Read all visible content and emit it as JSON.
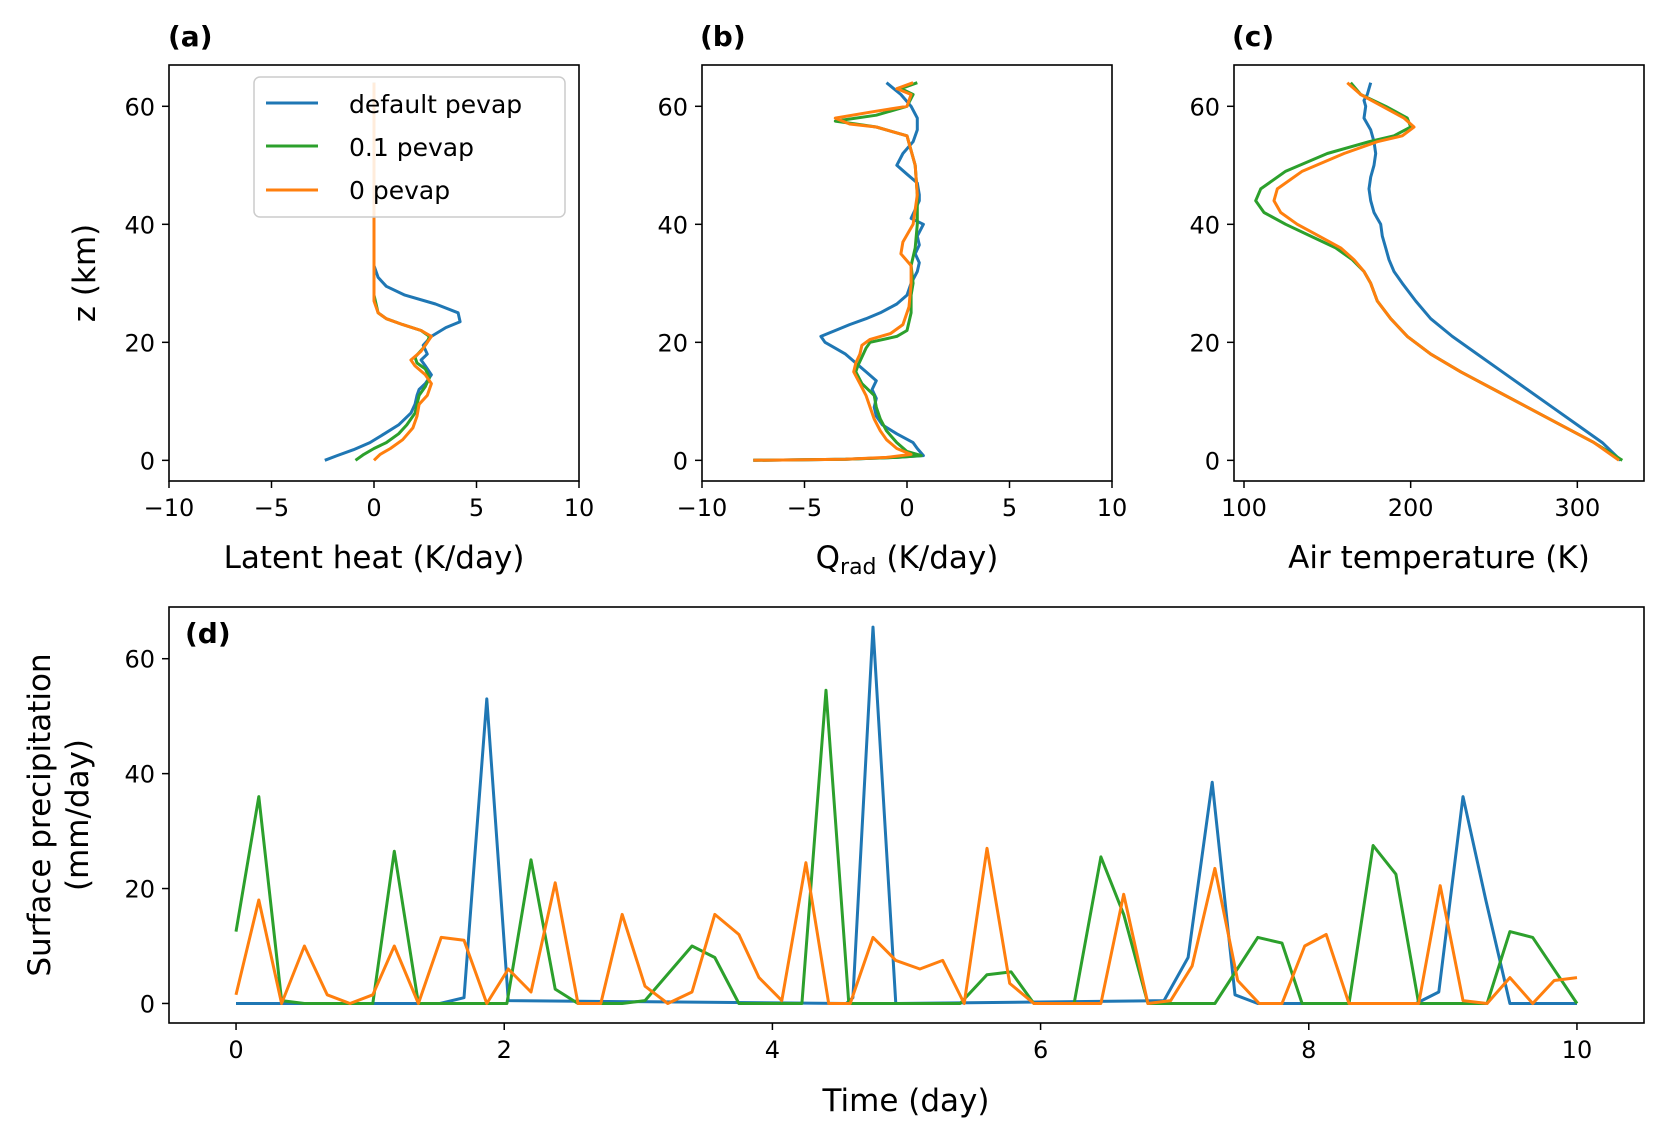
{
  "colors": {
    "default": "#1f77b4",
    "p01": "#2ca02c",
    "p0": "#ff7f0e"
  },
  "legend": [
    "default pevap",
    "0.1 pevap",
    "0 pevap"
  ],
  "chart_data": [
    {
      "id": "a",
      "panel_label": "(a)",
      "type": "line",
      "xlabel": "Latent heat (K/day)",
      "ylabel": "z (km)",
      "xlim": [
        -10,
        10
      ],
      "ylim": [
        -3.5,
        67
      ],
      "xticks": [
        -10,
        -5,
        0,
        5,
        10
      ],
      "xtick_labels": [
        "−10",
        "−5",
        "0",
        "5",
        "10"
      ],
      "yticks": [
        0,
        20,
        40,
        60
      ],
      "ytick_labels": [
        "0",
        "20",
        "40",
        "60"
      ],
      "legend": "upper right",
      "series": [
        {
          "name": "default pevap",
          "color_key": "default",
          "x": [
            -2.4,
            -1.8,
            -1,
            -0.2,
            0.5,
            1.2,
            1.8,
            2,
            2.1,
            2.2,
            2.5,
            2.8,
            2.5,
            2.3,
            2.6,
            2.4,
            2.8,
            3.5,
            4.2,
            4.1,
            3,
            1.5,
            0.6,
            0.2,
            0,
            0,
            0,
            0,
            0
          ],
          "y": [
            0,
            0.8,
            1.8,
            3,
            4.5,
            6,
            8,
            9.5,
            11,
            12,
            13,
            14.5,
            16,
            17,
            18,
            19.5,
            21,
            22.5,
            23.5,
            25,
            26.5,
            28,
            29.5,
            31,
            33,
            40,
            50,
            60,
            64
          ]
        },
        {
          "name": "0.1 pevap",
          "color_key": "p01",
          "x": [
            -0.9,
            -0.5,
            0,
            0.6,
            1.2,
            1.6,
            2,
            2.1,
            2.2,
            2.5,
            2.7,
            2.5,
            2.1,
            2,
            2.4,
            2.6,
            2.7,
            2.3,
            1.4,
            0.6,
            0.2,
            0,
            0,
            0
          ],
          "y": [
            0,
            1,
            2,
            3,
            4.5,
            6,
            8,
            9.5,
            11,
            12.5,
            14,
            15.5,
            16.5,
            17.5,
            19,
            20,
            21,
            22,
            23,
            24,
            25,
            28,
            40,
            64
          ]
        },
        {
          "name": "0 pevap",
          "color_key": "p0",
          "x": [
            0,
            0.3,
            0.8,
            1.4,
            1.9,
            2.1,
            2.2,
            2.6,
            2.8,
            2.5,
            2,
            1.8,
            2.3,
            2.6,
            2.8,
            2.3,
            1.4,
            0.6,
            0.2,
            0,
            0,
            0
          ],
          "y": [
            0,
            1,
            2,
            3.5,
            5.5,
            7.5,
            9.5,
            11,
            13,
            14.5,
            16,
            17,
            18.5,
            20,
            21,
            22,
            23,
            24,
            25,
            27,
            40,
            64
          ]
        }
      ]
    },
    {
      "id": "b",
      "panel_label": "(b)",
      "type": "line",
      "xlabel": "Q_rad (K/day)",
      "xlabel_main": "Q",
      "xlabel_sub": "rad",
      "xlabel_unit": " (K/day)",
      "xlim": [
        -10,
        10
      ],
      "ylim": [
        -3.5,
        67
      ],
      "xticks": [
        -10,
        -5,
        0,
        5,
        10
      ],
      "xtick_labels": [
        "−10",
        "−5",
        "0",
        "5",
        "10"
      ],
      "yticks": [
        0,
        20,
        40,
        60
      ],
      "ytick_labels": [
        "0",
        "20",
        "40",
        "60"
      ],
      "series": [
        {
          "name": "default pevap",
          "color_key": "default",
          "x": [
            -7.5,
            -3,
            -0.5,
            0.8,
            0.5,
            0.3,
            -0.5,
            -1.2,
            -1.5,
            -1.6,
            -1.5,
            -1.7,
            -1.5,
            -2,
            -2.5,
            -3,
            -3.5,
            -4,
            -4.2,
            -3.5,
            -2.8,
            -2,
            -1.3,
            -0.5,
            0,
            0.2,
            0.5,
            0.6,
            0.4,
            0.6,
            0.5,
            0.8,
            0.2,
            0.4,
            0.6,
            0.6,
            0.5,
            0,
            -0.5,
            -0.2,
            0.3,
            0.5,
            0.5,
            0.2,
            -0.3,
            -1
          ],
          "y": [
            0,
            0.2,
            0.5,
            0.8,
            2,
            3,
            4.5,
            6,
            7.5,
            9,
            10.5,
            12,
            13.5,
            15,
            16.5,
            18,
            19,
            20,
            21,
            22,
            23,
            24,
            25,
            26.5,
            28,
            30,
            32,
            33.5,
            35,
            36.5,
            38,
            40,
            41,
            42.5,
            44,
            45,
            47,
            48.5,
            50,
            52,
            54,
            56,
            58,
            60,
            62,
            64
          ]
        },
        {
          "name": "0.1 pevap",
          "color_key": "p01",
          "x": [
            -7.5,
            -3,
            -0.5,
            0.7,
            0,
            -0.5,
            -1,
            -1.3,
            -1.5,
            -1.6,
            -2.2,
            -2.5,
            -2.4,
            -2.2,
            -2,
            -1.8,
            -0.5,
            0,
            0.2,
            0.2,
            0.3,
            0.2,
            0.4,
            0.5,
            0.5,
            0.4,
            0,
            -1.5,
            -2.5,
            -3.5,
            -1.5,
            0,
            0.3,
            -0.3,
            0.5
          ],
          "y": [
            0,
            0.2,
            0.5,
            0.8,
            1.5,
            3,
            5,
            7,
            9,
            11,
            13,
            15,
            16,
            17.5,
            19,
            20,
            21,
            22,
            25,
            28,
            30,
            33,
            36,
            40,
            45,
            50,
            55,
            56.5,
            57,
            57.5,
            58.5,
            60,
            62,
            63,
            64
          ]
        },
        {
          "name": "0 pevap",
          "color_key": "p0",
          "x": [
            -7.5,
            -3,
            -1,
            0.2,
            -0.5,
            -1,
            -1.3,
            -1.6,
            -1.8,
            -2,
            -2.3,
            -2.6,
            -2.5,
            -2.3,
            -2.2,
            -1.8,
            -0.8,
            -0.2,
            0.1,
            0.2,
            0.2,
            -0.3,
            -0.2,
            0.3,
            0.5,
            0.4,
            0,
            -1.5,
            -2.8,
            -3.5,
            -1.8,
            0,
            0.2,
            -0.5,
            0.3
          ],
          "y": [
            0,
            0.2,
            0.5,
            1,
            2,
            3.5,
            5,
            7,
            9,
            11,
            13,
            15,
            16.5,
            18,
            19.5,
            20.5,
            21.5,
            23,
            26,
            30,
            33,
            35,
            37,
            40,
            45,
            50,
            55,
            56.5,
            57,
            58,
            59,
            60,
            62,
            63,
            64
          ]
        }
      ]
    },
    {
      "id": "c",
      "panel_label": "(c)",
      "type": "line",
      "xlabel": "Air temperature (K)",
      "xlim": [
        94,
        340
      ],
      "ylim": [
        -3.5,
        67
      ],
      "xticks": [
        100,
        200,
        300
      ],
      "xtick_labels": [
        "100",
        "200",
        "300"
      ],
      "yticks": [
        0,
        20,
        40,
        60
      ],
      "ytick_labels": [
        "0",
        "20",
        "40",
        "60"
      ],
      "series": [
        {
          "name": "default pevap",
          "color_key": "default",
          "x": [
            326,
            315,
            300,
            285,
            270,
            255,
            240,
            225,
            212,
            203,
            195,
            190,
            187,
            185,
            183,
            182,
            180,
            178,
            176,
            175,
            176,
            178,
            179,
            178,
            176,
            172,
            173,
            172,
            174,
            176
          ],
          "y": [
            0,
            3,
            6,
            9,
            12,
            15,
            18,
            21,
            24,
            27,
            30,
            32,
            34,
            36,
            38,
            40,
            41,
            42,
            44,
            46,
            48,
            50,
            52,
            54,
            56,
            58,
            60,
            61,
            62,
            64
          ]
        },
        {
          "name": "0.1 pevap",
          "color_key": "p01",
          "x": [
            327,
            310,
            290,
            270,
            250,
            230,
            212,
            198,
            188,
            180,
            176,
            172,
            165,
            155,
            140,
            125,
            112,
            107,
            110,
            125,
            150,
            175,
            190,
            200,
            198,
            185,
            170,
            164
          ],
          "y": [
            0,
            3,
            6,
            9,
            12,
            15,
            18,
            21,
            24,
            27,
            30,
            32,
            34,
            36,
            38,
            40,
            42,
            44,
            46,
            49,
            52,
            54,
            55,
            56.5,
            58,
            60,
            62,
            64
          ]
        },
        {
          "name": "0 pevap",
          "color_key": "p0",
          "x": [
            325,
            310,
            290,
            270,
            250,
            230,
            212,
            198,
            188,
            180,
            176,
            172,
            166,
            158,
            145,
            132,
            122,
            118,
            120,
            135,
            160,
            180,
            195,
            202,
            196,
            183,
            170,
            162
          ],
          "y": [
            0,
            3,
            6,
            9,
            12,
            15,
            18,
            21,
            24,
            27,
            30,
            32,
            34,
            36,
            38,
            40,
            42,
            44,
            46,
            49,
            52,
            54,
            55,
            56.5,
            58,
            60,
            62,
            64
          ]
        }
      ]
    },
    {
      "id": "d",
      "panel_label": "(d)",
      "type": "line",
      "xlabel": "Time (day)",
      "ylabel": "Surface precipitation",
      "ylabel2": "(mm/day)",
      "xlim": [
        -0.5,
        10.5
      ],
      "ylim": [
        -3.4,
        69
      ],
      "xticks": [
        0,
        2,
        4,
        6,
        8,
        10
      ],
      "xtick_labels": [
        "0",
        "2",
        "4",
        "6",
        "8",
        "10"
      ],
      "yticks": [
        0,
        20,
        40,
        60
      ],
      "ytick_labels": [
        "0",
        "20",
        "40",
        "60"
      ],
      "series": [
        {
          "name": "default pevap",
          "color_key": "default",
          "x": [
            0,
            1.52,
            1.7,
            1.87,
            2.03,
            4.55,
            4.6,
            4.75,
            4.92,
            6.92,
            7.1,
            7.28,
            7.45,
            7.62,
            8.8,
            8.97,
            9.15,
            9.32,
            9.5,
            10
          ],
          "y": [
            0,
            0,
            1,
            53,
            0.5,
            0,
            1,
            65.5,
            0,
            0.5,
            8,
            38.5,
            1.5,
            0,
            0,
            2,
            36,
            18,
            0,
            0
          ]
        },
        {
          "name": "0.1 pevap",
          "color_key": "p01",
          "x": [
            0,
            0.17,
            0.34,
            0.51,
            1.02,
            1.18,
            1.36,
            2.02,
            2.2,
            2.38,
            2.55,
            2.88,
            3.05,
            3.4,
            3.57,
            3.75,
            3.9,
            4.22,
            4.4,
            4.57,
            5.1,
            5.4,
            5.6,
            5.78,
            5.95,
            6.25,
            6.45,
            6.62,
            6.8,
            7.3,
            7.62,
            7.8,
            7.95,
            8.3,
            8.48,
            8.65,
            8.82,
            9.15,
            9.33,
            9.5,
            9.67,
            10
          ],
          "y": [
            12.5,
            36,
            0.5,
            0,
            0,
            26.5,
            0,
            0,
            25,
            2.5,
            0,
            0,
            0.5,
            10,
            8,
            0,
            0,
            0,
            54.5,
            0,
            0,
            0,
            5,
            5.5,
            0,
            0,
            25.5,
            15.5,
            0,
            0,
            11.5,
            10.5,
            0,
            0,
            27.5,
            22.5,
            0,
            0,
            0,
            12.5,
            11.5,
            0
          ]
        },
        {
          "name": "0 pevap",
          "color_key": "p0",
          "x": [
            0,
            0.17,
            0.34,
            0.51,
            0.68,
            0.85,
            1.02,
            1.18,
            1.36,
            1.53,
            1.7,
            1.87,
            2.03,
            2.2,
            2.38,
            2.55,
            2.72,
            2.88,
            3.05,
            3.22,
            3.4,
            3.57,
            3.75,
            3.9,
            4.07,
            4.25,
            4.42,
            4.58,
            4.75,
            4.92,
            5.1,
            5.27,
            5.43,
            5.6,
            5.77,
            5.95,
            6.12,
            6.28,
            6.45,
            6.62,
            6.8,
            6.97,
            7.13,
            7.3,
            7.47,
            7.63,
            7.8,
            7.97,
            8.13,
            8.3,
            8.48,
            8.65,
            8.82,
            8.98,
            9.15,
            9.33,
            9.5,
            9.67,
            9.83,
            10
          ],
          "y": [
            1.5,
            18,
            0,
            10,
            1.5,
            0,
            1.5,
            10,
            0,
            11.5,
            11,
            0,
            6,
            2,
            21,
            0,
            0,
            15.5,
            3,
            0,
            2,
            15.5,
            12,
            4.5,
            0.5,
            24.5,
            0,
            0,
            11.5,
            7.5,
            6,
            7.5,
            0,
            27,
            3.5,
            0,
            0,
            0,
            0,
            19,
            0,
            0.5,
            6.5,
            23.5,
            4,
            0,
            0,
            10,
            12,
            0,
            0,
            0,
            0,
            20.5,
            0.5,
            0,
            4.5,
            0,
            4,
            4.5
          ]
        }
      ]
    }
  ]
}
